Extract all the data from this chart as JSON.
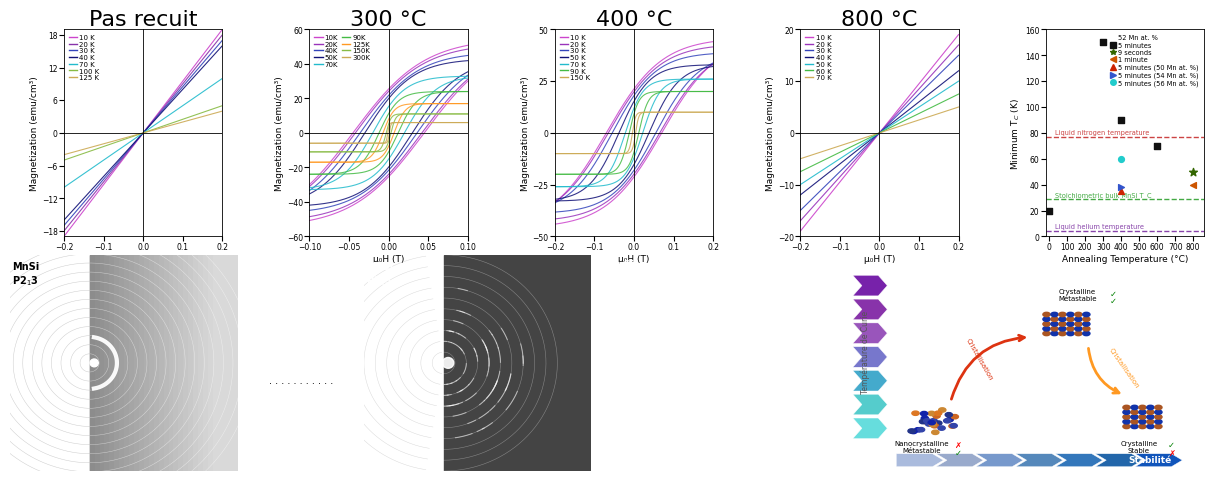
{
  "panel_titles": [
    "Pas recuit",
    "300 °C",
    "400 °C",
    "800 °C"
  ],
  "title_fontsize": 16,
  "axis_label_fontsize": 6.5,
  "tick_fontsize": 5.5,
  "legend_fontsize": 5.0,
  "panel1": {
    "ylabel": "Magnetization (emu/cm³)",
    "xlabel": "μ₀H (T)",
    "xlim": [
      -0.2,
      0.2
    ],
    "ylim": [
      -19,
      19
    ],
    "yticks": [
      -18,
      -12,
      -6,
      0,
      6,
      12,
      18
    ],
    "xticks": [
      -0.2,
      -0.1,
      0.0,
      0.1,
      0.2
    ],
    "colors": [
      "#cc44cc",
      "#8833aa",
      "#3344bb",
      "#111177",
      "#22bbcc",
      "#88bb44",
      "#ccaa55"
    ],
    "slopes": [
      95,
      85,
      75,
      65,
      40,
      22,
      17
    ],
    "labels": [
      "10 K",
      "20 K",
      "30 K",
      "40 K",
      "70 K",
      "100 K",
      "125 K"
    ],
    "sat": [
      19,
      18,
      17,
      16,
      10,
      5,
      4
    ],
    "hc": [
      0.0,
      0.0,
      0.0,
      0.0,
      0.0,
      0.0,
      0.0
    ]
  },
  "panel2": {
    "ylabel": "Magnetization (emu/cm³)",
    "xlabel": "μ₀H (T)",
    "xlim": [
      -0.1,
      0.1
    ],
    "ylim": [
      -60,
      60
    ],
    "yticks": [
      -60,
      -40,
      -20,
      0,
      20,
      40,
      60
    ],
    "xticks": [
      -0.1,
      -0.05,
      0.0,
      0.05,
      0.1
    ],
    "colors": [
      "#cc44cc",
      "#9933bb",
      "#3344bb",
      "#111177",
      "#22bbcc",
      "#44bb44",
      "#ff9922",
      "#88bb44",
      "#ccaa55"
    ],
    "labels": [
      "10K",
      "20K",
      "40K",
      "50K",
      "70K",
      "90K",
      "125K",
      "150K",
      "300K"
    ],
    "sat": [
      55,
      52,
      47,
      43,
      33,
      24,
      17,
      11,
      6
    ],
    "hc": [
      0.045,
      0.042,
      0.036,
      0.03,
      0.02,
      0.012,
      0.007,
      0.003,
      0.001
    ]
  },
  "panel3": {
    "ylabel": "Magnetization (emu/cm³)",
    "xlabel": "μ₀H (T)",
    "xlim": [
      -0.2,
      0.2
    ],
    "ylim": [
      -50,
      50
    ],
    "yticks": [
      -50,
      -25,
      0,
      25,
      50
    ],
    "xticks": [
      -0.2,
      -0.1,
      0.0,
      0.1,
      0.2
    ],
    "colors": [
      "#cc44cc",
      "#9933bb",
      "#3344bb",
      "#111177",
      "#22bbcc",
      "#44bb44",
      "#ccaa55"
    ],
    "labels": [
      "10 K",
      "20 K",
      "30 K",
      "50 K",
      "70 K",
      "90 K",
      "150 K"
    ],
    "sat": [
      46,
      43,
      39,
      33,
      26,
      20,
      10
    ],
    "hc": [
      0.07,
      0.065,
      0.055,
      0.038,
      0.022,
      0.012,
      0.004
    ]
  },
  "panel4": {
    "ylabel": "Magnetization (emu/cm³)",
    "xlabel": "μ₀H (T)",
    "xlim": [
      -0.2,
      0.2
    ],
    "ylim": [
      -20,
      20
    ],
    "yticks": [
      -20,
      -10,
      0,
      10,
      20
    ],
    "xticks": [
      -0.2,
      -0.1,
      0.0,
      0.1,
      0.2
    ],
    "colors": [
      "#cc44cc",
      "#9933bb",
      "#3344bb",
      "#111177",
      "#22bbcc",
      "#44bb44",
      "#ccaa55"
    ],
    "labels": [
      "10 K",
      "20 K",
      "30 K",
      "40 K",
      "50 K",
      "60 K",
      "70 K"
    ],
    "sat": [
      19,
      17,
      15,
      12,
      10,
      7.5,
      5
    ],
    "hc": [
      0.0,
      0.0,
      0.0,
      0.0,
      0.0,
      0.0,
      0.0
    ]
  },
  "scatter": {
    "xlabel": "Annealing Temperature (°C)",
    "ylabel": "Minimum T$_C$ (K)",
    "xlim": [
      -20,
      860
    ],
    "ylim": [
      0,
      160
    ],
    "yticks": [
      0,
      20,
      40,
      60,
      80,
      100,
      120,
      140,
      160
    ],
    "xticks": [
      0,
      100,
      200,
      300,
      400,
      500,
      600,
      700,
      800
    ],
    "series": [
      {
        "label": "5 minutes",
        "marker": "s",
        "color": "#111111",
        "ms": 5,
        "x": [
          0,
          300,
          400,
          600
        ],
        "y": [
          20,
          150,
          90,
          70
        ]
      },
      {
        "label": "9 seconds",
        "marker": "*",
        "color": "#336600",
        "ms": 7,
        "x": [
          800
        ],
        "y": [
          50
        ]
      },
      {
        "label": "1 minute",
        "marker": "<",
        "color": "#cc5500",
        "ms": 5,
        "x": [
          800
        ],
        "y": [
          40
        ]
      },
      {
        "label": "5 minutes (50 Mn at. %)",
        "marker": "^",
        "color": "#cc2200",
        "ms": 5,
        "x": [
          400
        ],
        "y": [
          35
        ]
      },
      {
        "label": "5 minutes (54 Mn at. %)",
        "marker": ">",
        "color": "#3355cc",
        "ms": 5,
        "x": [
          400
        ],
        "y": [
          38
        ]
      },
      {
        "label": "5 minutes (56 Mn at. %)",
        "marker": "o",
        "color": "#22cccc",
        "ms": 5,
        "x": [
          400
        ],
        "y": [
          60
        ]
      }
    ],
    "hlines": [
      {
        "y": 77,
        "color": "#cc4444",
        "linestyle": "--",
        "label": "Liquid nitrogen temperature"
      },
      {
        "y": 29,
        "color": "#44aa44",
        "linestyle": "--",
        "label": "Stoichiometric bulk MnSi T_C"
      },
      {
        "y": 4.2,
        "color": "#8844aa",
        "linestyle": "--",
        "label": "Liquid helium temperature"
      }
    ],
    "legend_title": "52 Mn at. %"
  },
  "bg_color": "#ffffff"
}
